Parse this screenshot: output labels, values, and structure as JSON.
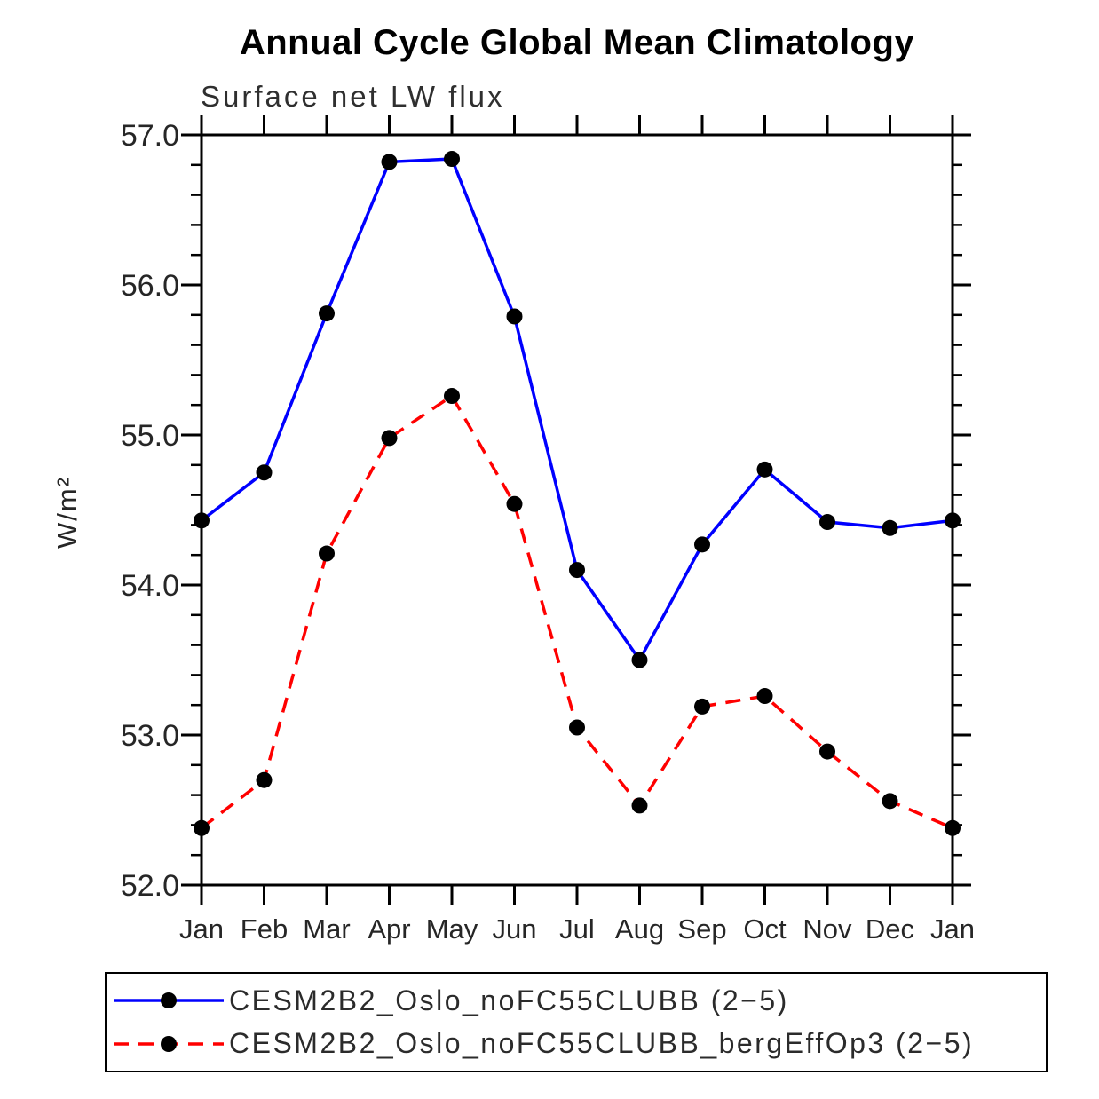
{
  "header": {
    "title": "Annual Cycle Global Mean Climatology",
    "subtitle": "Surface net LW flux"
  },
  "chart_data": {
    "type": "line",
    "title": "Annual Cycle Global Mean Climatology",
    "subtitle": "Surface net LW flux",
    "xlabel": "",
    "ylabel": "W/m²",
    "ylim": [
      52.0,
      57.0
    ],
    "y_ticks": [
      52.0,
      53.0,
      54.0,
      55.0,
      56.0,
      57.0
    ],
    "y_tick_labels": [
      "52.0",
      "53.0",
      "54.0",
      "55.0",
      "56.0",
      "57.0"
    ],
    "y_minor_step": 0.2,
    "grid": false,
    "legend_position": "bottom",
    "categories": [
      "Jan",
      "Feb",
      "Mar",
      "Apr",
      "May",
      "Jun",
      "Jul",
      "Aug",
      "Sep",
      "Oct",
      "Nov",
      "Dec",
      "Jan"
    ],
    "series": [
      {
        "name": "CESM2B2_Oslo_noFC55CLUBB (2−5)",
        "color": "#0000ff",
        "line_style": "solid",
        "marker": "filled-circle",
        "marker_color": "#000000",
        "values": [
          54.43,
          54.75,
          55.81,
          56.82,
          56.84,
          55.79,
          54.1,
          53.5,
          54.27,
          54.77,
          54.42,
          54.38,
          54.43
        ]
      },
      {
        "name": "CESM2B2_Oslo_noFC55CLUBB_bergEffOp3 (2−5)",
        "color": "#ff0000",
        "line_style": "dashed",
        "marker": "filled-circle",
        "marker_color": "#000000",
        "values": [
          52.38,
          52.7,
          54.21,
          54.98,
          55.26,
          54.54,
          53.05,
          52.53,
          53.19,
          53.26,
          52.89,
          52.56,
          52.38
        ]
      }
    ]
  }
}
